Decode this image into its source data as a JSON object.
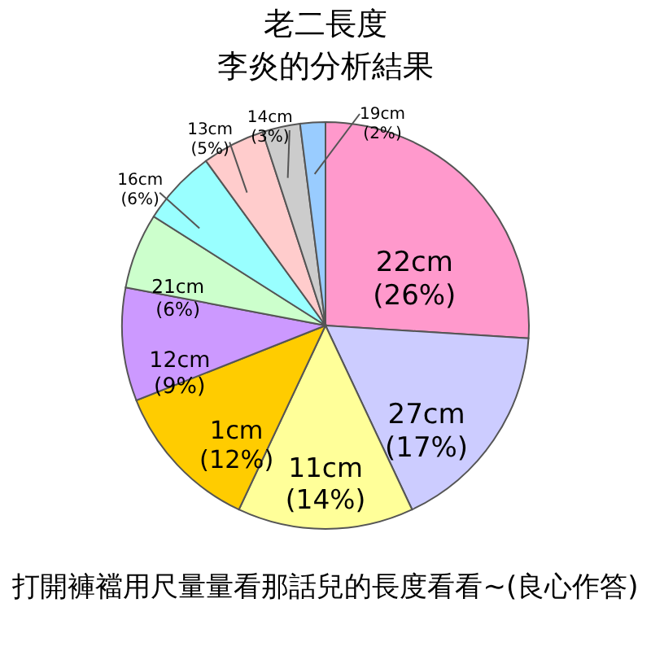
{
  "chart_data": {
    "type": "pie",
    "title": "老二長度",
    "subtitle": "李炎的分析結果",
    "categories": [
      "22cm",
      "27cm",
      "11cm",
      "1cm",
      "12cm",
      "21cm",
      "16cm",
      "13cm",
      "14cm",
      "19cm"
    ],
    "values": [
      26,
      17,
      14,
      12,
      9,
      6,
      6,
      5,
      3,
      2
    ],
    "colors": [
      "#ff99cc",
      "#ccccff",
      "#ffff99",
      "#ffcc00",
      "#cc99ff",
      "#ccffcc",
      "#99ffff",
      "#ffcccc",
      "#cccccc",
      "#99ccff"
    ],
    "value_labels": [
      "(26%)",
      "(17%)",
      "(14%)",
      "(12%)",
      "(9%)",
      "(6%)",
      "(6%)",
      "(5%)",
      "(3%)",
      "(2%)"
    ],
    "annotations": [
      "打開褲襠用尺量量看那話兒的長度看看~(良心作答)"
    ]
  }
}
